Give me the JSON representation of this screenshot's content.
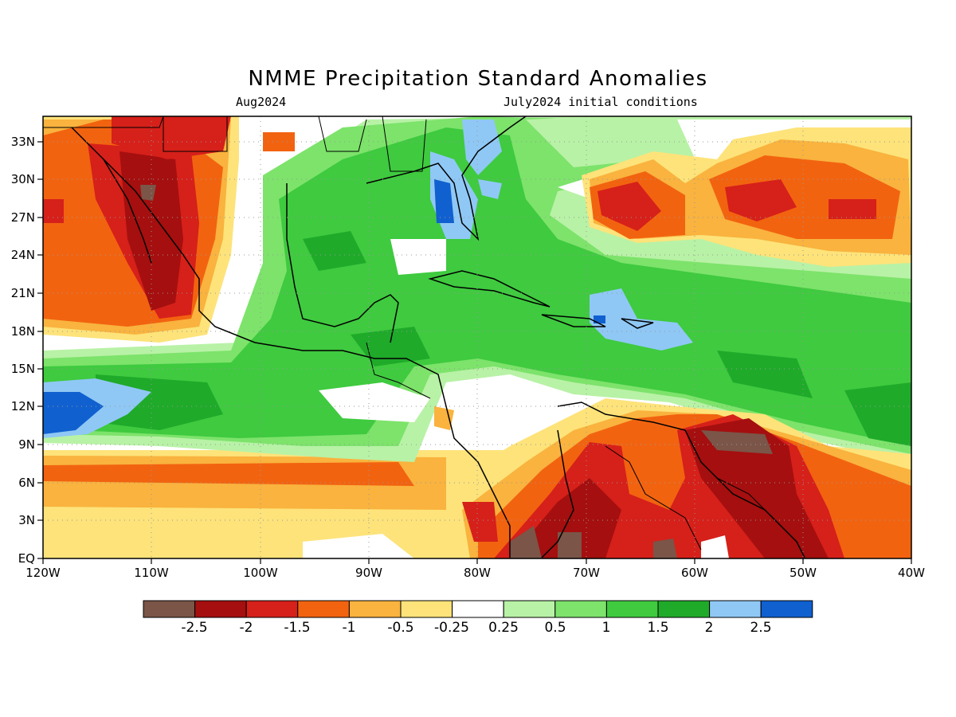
{
  "header": {
    "title": "NMME Precipitation Standard Anomalies",
    "subtitle_left": "Aug2024",
    "subtitle_right": "July2024 initial conditions"
  },
  "map": {
    "lon_labels": [
      "120W",
      "110W",
      "100W",
      "90W",
      "80W",
      "70W",
      "60W",
      "50W",
      "40W"
    ],
    "lat_labels": [
      "EQ",
      "3N",
      "6N",
      "9N",
      "12N",
      "15N",
      "18N",
      "21N",
      "24N",
      "27N",
      "30N",
      "33N"
    ],
    "lon_range": [
      -120,
      -40
    ],
    "lat_range": [
      0,
      35
    ],
    "gridlines": "dotted"
  },
  "colorbar": {
    "labels": [
      "-2.5",
      "-2",
      "-1.5",
      "-1",
      "-0.5",
      "-0.25",
      "0.25",
      "0.5",
      "1",
      "1.5",
      "2",
      "2.5"
    ],
    "colors": [
      "#7a5548",
      "#a50f0f",
      "#d6201a",
      "#f26310",
      "#f9b33e",
      "#fde37a",
      "#ffffff",
      "#b8f2a6",
      "#7de36b",
      "#3fca3f",
      "#1faa2a",
      "#8fc8f5",
      "#1060d0"
    ]
  }
}
